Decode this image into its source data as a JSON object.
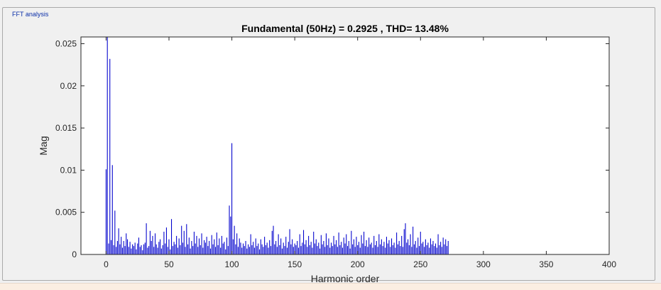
{
  "window": {
    "panel_title": "FFT analysis"
  },
  "colors": {
    "bar": "#0000cd",
    "axis": "#262626",
    "plot_bg": "#ffffff",
    "panel_bg": "#f0f0f0"
  },
  "chart_data": {
    "type": "bar",
    "title": "Fundamental (50Hz) = 0.2925 , THD= 13.48%",
    "xlabel": "Harmonic order",
    "ylabel": "Mag",
    "xlim": [
      -20,
      400
    ],
    "ylim": [
      0,
      0.0258
    ],
    "xticks": [
      0,
      50,
      100,
      150,
      200,
      250,
      300,
      350,
      400
    ],
    "yticks": [
      0,
      0.005,
      0.01,
      0.015,
      0.02,
      0.025
    ],
    "xtick_labels": [
      "0",
      "50",
      "100",
      "150",
      "200",
      "250",
      "300",
      "350",
      "400"
    ],
    "ytick_labels": [
      "0",
      "0.005",
      "0.01",
      "0.015",
      "0.02",
      "0.025"
    ],
    "grid": false,
    "x_start": 0,
    "values": [
      0.0101,
      0.0258,
      0.0013,
      0.0232,
      0.0017,
      0.0106,
      0.0011,
      0.0052,
      0.0009,
      0.0016,
      0.0031,
      0.0012,
      0.0021,
      0.0008,
      0.0016,
      0.001,
      0.0025,
      0.0018,
      0.0009,
      0.0015,
      0.0007,
      0.0012,
      0.001,
      0.0014,
      0.0006,
      0.0013,
      0.002,
      0.0009,
      0.0011,
      0.0005,
      0.0012,
      0.0014,
      0.0037,
      0.0008,
      0.001,
      0.0028,
      0.0016,
      0.0022,
      0.0009,
      0.0025,
      0.0012,
      0.0008,
      0.0015,
      0.0018,
      0.0007,
      0.0011,
      0.0027,
      0.0013,
      0.0032,
      0.0009,
      0.0018,
      0.0006,
      0.0042,
      0.001,
      0.0015,
      0.0012,
      0.0022,
      0.0008,
      0.0019,
      0.0011,
      0.0034,
      0.0014,
      0.0028,
      0.0009,
      0.0036,
      0.0012,
      0.002,
      0.0007,
      0.0016,
      0.001,
      0.0027,
      0.0013,
      0.0022,
      0.0009,
      0.0019,
      0.0011,
      0.0025,
      0.0008,
      0.0017,
      0.0014,
      0.0021,
      0.001,
      0.0016,
      0.0007,
      0.0023,
      0.0012,
      0.0018,
      0.0009,
      0.0026,
      0.0011,
      0.0019,
      0.0008,
      0.0022,
      0.0013,
      0.0015,
      0.0006,
      0.002,
      0.001,
      0.0058,
      0.0045,
      0.0132,
      0.0018,
      0.0034,
      0.0012,
      0.0025,
      0.0009,
      0.0019,
      0.0014,
      0.0008,
      0.0013,
      0.001,
      0.0016,
      0.0007,
      0.0012,
      0.0009,
      0.0024,
      0.0011,
      0.0015,
      0.0008,
      0.0019,
      0.001,
      0.0013,
      0.0006,
      0.0018,
      0.0012,
      0.0009,
      0.0021,
      0.0011,
      0.0014,
      0.0008,
      0.0017,
      0.001,
      0.0028,
      0.0034,
      0.0012,
      0.0016,
      0.0009,
      0.0024,
      0.0011,
      0.0019,
      0.0007,
      0.0014,
      0.001,
      0.0021,
      0.0008,
      0.0015,
      0.003,
      0.0012,
      0.0018,
      0.0009,
      0.0013,
      0.0011,
      0.0016,
      0.0008,
      0.0024,
      0.001,
      0.0014,
      0.0029,
      0.0012,
      0.0017,
      0.0009,
      0.0022,
      0.0011,
      0.0015,
      0.0008,
      0.0027,
      0.0013,
      0.0018,
      0.001,
      0.0014,
      0.0007,
      0.0023,
      0.0012,
      0.0016,
      0.0009,
      0.0025,
      0.0011,
      0.0019,
      0.0008,
      0.0014,
      0.001,
      0.0022,
      0.0012,
      0.0017,
      0.0009,
      0.0026,
      0.0011,
      0.0015,
      0.0008,
      0.002,
      0.0013,
      0.0024,
      0.001,
      0.0016,
      0.0007,
      0.0028,
      0.0012,
      0.0018,
      0.0009,
      0.0021,
      0.0011,
      0.0015,
      0.0008,
      0.0023,
      0.0013,
      0.0027,
      0.001,
      0.0017,
      0.0009,
      0.002,
      0.0012,
      0.0014,
      0.0008,
      0.0022,
      0.0011,
      0.0016,
      0.0009,
      0.0024,
      0.0012,
      0.0018,
      0.001,
      0.0015,
      0.0008,
      0.0021,
      0.0013,
      0.0017,
      0.0009,
      0.0019,
      0.0011,
      0.0014,
      0.0008,
      0.0026,
      0.0012,
      0.0016,
      0.001,
      0.0022,
      0.0009,
      0.003,
      0.0037,
      0.0014,
      0.0018,
      0.0011,
      0.0024,
      0.0009,
      0.0033,
      0.0012,
      0.0016,
      0.0008,
      0.002,
      0.001,
      0.0027,
      0.0013,
      0.0015,
      0.0009,
      0.0018,
      0.0011,
      0.0014,
      0.0008,
      0.0019,
      0.0012,
      0.0016,
      0.001,
      0.0013,
      0.0008,
      0.0024,
      0.0011,
      0.0015,
      0.0009,
      0.002,
      0.0012,
      0.0018,
      0.001,
      0.0016
    ]
  }
}
